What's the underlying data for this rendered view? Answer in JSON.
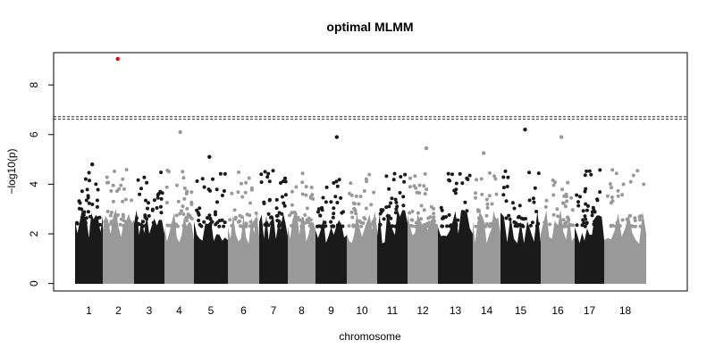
{
  "chart_data": {
    "type": "scatter",
    "title": "optimal MLMM",
    "xlabel": "chromosome",
    "ylabel": "−log10(p)",
    "ylim": [
      -0.3,
      9.3
    ],
    "yticks": [
      0,
      2,
      4,
      6,
      8
    ],
    "grid": false,
    "legend": "none",
    "thresholds": [
      6.62,
      6.72
    ],
    "chromosomes": [
      {
        "label": "1",
        "color": "#1a1a1a"
      },
      {
        "label": "2",
        "color": "#999999"
      },
      {
        "label": "3",
        "color": "#1a1a1a"
      },
      {
        "label": "4",
        "color": "#999999"
      },
      {
        "label": "5",
        "color": "#1a1a1a"
      },
      {
        "label": "6",
        "color": "#999999"
      },
      {
        "label": "7",
        "color": "#1a1a1a"
      },
      {
        "label": "8",
        "color": "#999999"
      },
      {
        "label": "9",
        "color": "#1a1a1a"
      },
      {
        "label": "10",
        "color": "#999999"
      },
      {
        "label": "11",
        "color": "#1a1a1a"
      },
      {
        "label": "12",
        "color": "#999999"
      },
      {
        "label": "13",
        "color": "#1a1a1a"
      },
      {
        "label": "14",
        "color": "#999999"
      },
      {
        "label": "15",
        "color": "#1a1a1a"
      },
      {
        "label": "16",
        "color": "#999999"
      },
      {
        "label": "17",
        "color": "#1a1a1a"
      },
      {
        "label": "18",
        "color": "#999999"
      }
    ],
    "top_hits": [
      {
        "chr": "2",
        "y": 9.05,
        "color": "#e8000b"
      },
      {
        "chr": "4",
        "y": 6.1
      },
      {
        "chr": "9",
        "y": 5.9
      },
      {
        "chr": "15",
        "y": 6.2
      },
      {
        "chr": "16",
        "y": 5.9
      },
      {
        "chr": "1",
        "y": 4.8
      },
      {
        "chr": "12",
        "y": 5.45
      },
      {
        "chr": "14",
        "y": 5.25
      },
      {
        "chr": "5",
        "y": 5.1
      }
    ]
  }
}
